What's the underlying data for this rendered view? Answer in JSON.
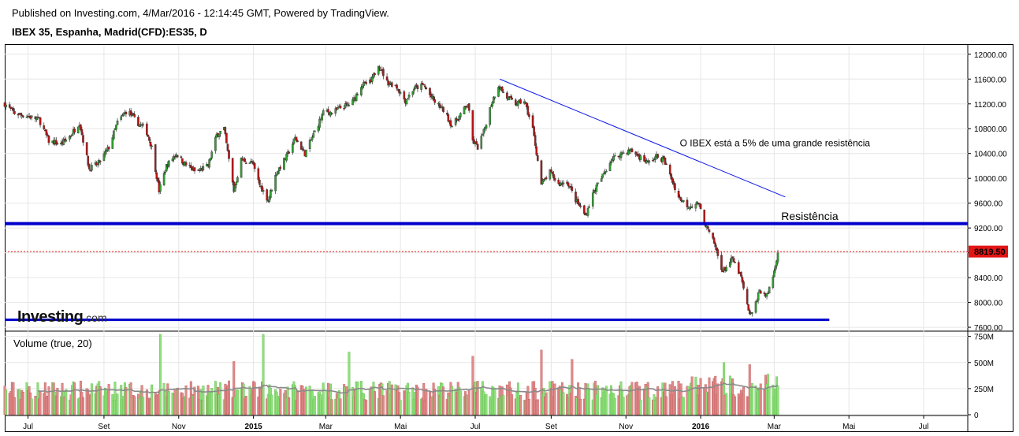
{
  "header": {
    "published": "Published on Investing.com, 4/Mar/2016 - 12:14:45 GMT, Powered by TradingView.",
    "symbol": "IBEX 35, Espanha, Madrid(CFD):ES35, D"
  },
  "logo": {
    "main": "Investing",
    "suffix": ".com"
  },
  "colors": {
    "up": "#2fa12f",
    "down": "#b81414",
    "trendline": "#0a14e6",
    "support": "#0000cc",
    "last_price": "#e21414",
    "vol_up": "#8fe07a",
    "vol_down": "#e08a8a",
    "vol_ma": "#8a8a8a"
  },
  "chart_data": [
    {
      "type": "candlestick",
      "title": "IBEX 35, Espanha, Madrid(CFD):ES35, D",
      "ylim": [
        7550,
        12150
      ],
      "y_ticks": [
        "12000.00",
        "11600.00",
        "11200.00",
        "10800.00",
        "10400.00",
        "10000.00",
        "9600.00",
        "9200.00",
        "8800.00",
        "8400.00",
        "8000.00",
        "7600.00"
      ],
      "x_ticks": [
        "Jul",
        "Set",
        "Nov",
        "2015",
        "Mar",
        "Mai",
        "Jul",
        "Set",
        "Nov",
        "2016",
        "Mar",
        "Mai",
        "Jul"
      ],
      "x_tick_dates": [
        "2014-07-01",
        "2014-09-01",
        "2014-11-01",
        "2015-01-01",
        "2015-03-01",
        "2015-05-01",
        "2015-07-01",
        "2015-09-01",
        "2015-11-01",
        "2016-01-01",
        "2016-03-01",
        "2016-05-01",
        "2016-07-01"
      ],
      "xlim": [
        "2014-06-12",
        "2016-08-06"
      ],
      "last_price": 8819.5,
      "last_price_label": "8819.50",
      "close_path": [
        [
          "2014-06-12",
          11200
        ],
        [
          "2014-06-20",
          11050
        ],
        [
          "2014-07-01",
          11000
        ],
        [
          "2014-07-10",
          10950
        ],
        [
          "2014-07-18",
          10600
        ],
        [
          "2014-07-28",
          10550
        ],
        [
          "2014-08-05",
          10700
        ],
        [
          "2014-08-12",
          10900
        ],
        [
          "2014-08-20",
          10150
        ],
        [
          "2014-08-28",
          10250
        ],
        [
          "2014-09-05",
          10500
        ],
        [
          "2014-09-12",
          10900
        ],
        [
          "2014-09-20",
          11100
        ],
        [
          "2014-09-28",
          10900
        ],
        [
          "2014-10-05",
          10800
        ],
        [
          "2014-10-10",
          10500
        ],
        [
          "2014-10-16",
          9800
        ],
        [
          "2014-10-22",
          10200
        ],
        [
          "2014-10-30",
          10400
        ],
        [
          "2014-11-05",
          10250
        ],
        [
          "2014-11-15",
          10100
        ],
        [
          "2014-11-25",
          10200
        ],
        [
          "2014-12-02",
          10700
        ],
        [
          "2014-12-08",
          10800
        ],
        [
          "2014-12-16",
          9800
        ],
        [
          "2014-12-22",
          10300
        ],
        [
          "2014-12-31",
          10250
        ],
        [
          "2015-01-06",
          9900
        ],
        [
          "2015-01-13",
          9650
        ],
        [
          "2015-01-20",
          10100
        ],
        [
          "2015-01-28",
          10350
        ],
        [
          "2015-02-04",
          10650
        ],
        [
          "2015-02-12",
          10400
        ],
        [
          "2015-02-20",
          10750
        ],
        [
          "2015-02-28",
          11100
        ],
        [
          "2015-03-06",
          11050
        ],
        [
          "2015-03-14",
          11150
        ],
        [
          "2015-03-22",
          11200
        ],
        [
          "2015-03-30",
          11500
        ],
        [
          "2015-04-07",
          11550
        ],
        [
          "2015-04-13",
          11850
        ],
        [
          "2015-04-20",
          11550
        ],
        [
          "2015-04-27",
          11500
        ],
        [
          "2015-05-05",
          11250
        ],
        [
          "2015-05-12",
          11450
        ],
        [
          "2015-05-20",
          11500
        ],
        [
          "2015-05-28",
          11250
        ],
        [
          "2015-06-05",
          11100
        ],
        [
          "2015-06-12",
          10850
        ],
        [
          "2015-06-18",
          11000
        ],
        [
          "2015-06-25",
          11200
        ],
        [
          "2015-06-29",
          10600
        ],
        [
          "2015-07-03",
          10500
        ],
        [
          "2015-07-08",
          10750
        ],
        [
          "2015-07-14",
          11200
        ],
        [
          "2015-07-20",
          11500
        ],
        [
          "2015-07-27",
          11300
        ],
        [
          "2015-08-03",
          11200
        ],
        [
          "2015-08-10",
          11250
        ],
        [
          "2015-08-17",
          10800
        ],
        [
          "2015-08-24",
          9900
        ],
        [
          "2015-08-31",
          10100
        ],
        [
          "2015-09-07",
          9900
        ],
        [
          "2015-09-14",
          9950
        ],
        [
          "2015-09-21",
          9650
        ],
        [
          "2015-09-29",
          9400
        ],
        [
          "2015-10-06",
          9800
        ],
        [
          "2015-10-12",
          10000
        ],
        [
          "2015-10-20",
          10300
        ],
        [
          "2015-10-28",
          10400
        ],
        [
          "2015-11-05",
          10450
        ],
        [
          "2015-11-12",
          10350
        ],
        [
          "2015-11-19",
          10250
        ],
        [
          "2015-11-26",
          10350
        ],
        [
          "2015-12-02",
          10300
        ],
        [
          "2015-12-08",
          10000
        ],
        [
          "2015-12-14",
          9700
        ],
        [
          "2015-12-22",
          9550
        ],
        [
          "2015-12-30",
          9600
        ],
        [
          "2016-01-06",
          9200
        ],
        [
          "2016-01-12",
          8950
        ],
        [
          "2016-01-19",
          8500
        ],
        [
          "2016-01-27",
          8700
        ],
        [
          "2016-02-03",
          8400
        ],
        [
          "2016-02-09",
          7850
        ],
        [
          "2016-02-12",
          7800
        ],
        [
          "2016-02-18",
          8200
        ],
        [
          "2016-02-24",
          8100
        ],
        [
          "2016-03-01",
          8500
        ],
        [
          "2016-03-04",
          8819
        ]
      ],
      "annotations": [
        {
          "text": "O IBEX está a 5% de uma grande resistência",
          "x": "2015-12-15",
          "y": 10520
        },
        {
          "text": "Resistência",
          "x": "2016-03-30",
          "y": 9330
        }
      ],
      "trendline": {
        "x1": "2015-07-21",
        "y1": 11600,
        "x2": "2016-03-10",
        "y2": 9700
      },
      "resistance": {
        "y": 9270,
        "x1": "2014-06-12",
        "x2": "2016-08-06"
      },
      "support": {
        "y": 7720,
        "x1": "2014-06-12",
        "x2": "2016-04-15"
      }
    },
    {
      "type": "bar",
      "title": "Volume (true, 20)",
      "ylim": [
        0,
        800
      ],
      "y_ticks": [
        "750M",
        "500M",
        "250M",
        "0"
      ],
      "typical_volume": 250,
      "spikes": [
        {
          "date": "2014-10-17",
          "value": 770
        },
        {
          "date": "2014-12-16",
          "value": 510
        },
        {
          "date": "2015-01-09",
          "value": 770
        },
        {
          "date": "2015-03-20",
          "value": 600
        },
        {
          "date": "2015-06-29",
          "value": 560
        },
        {
          "date": "2015-08-24",
          "value": 620
        },
        {
          "date": "2015-09-18",
          "value": 530
        },
        {
          "date": "2016-01-20",
          "value": 500
        },
        {
          "date": "2016-02-10",
          "value": 480
        }
      ]
    }
  ]
}
